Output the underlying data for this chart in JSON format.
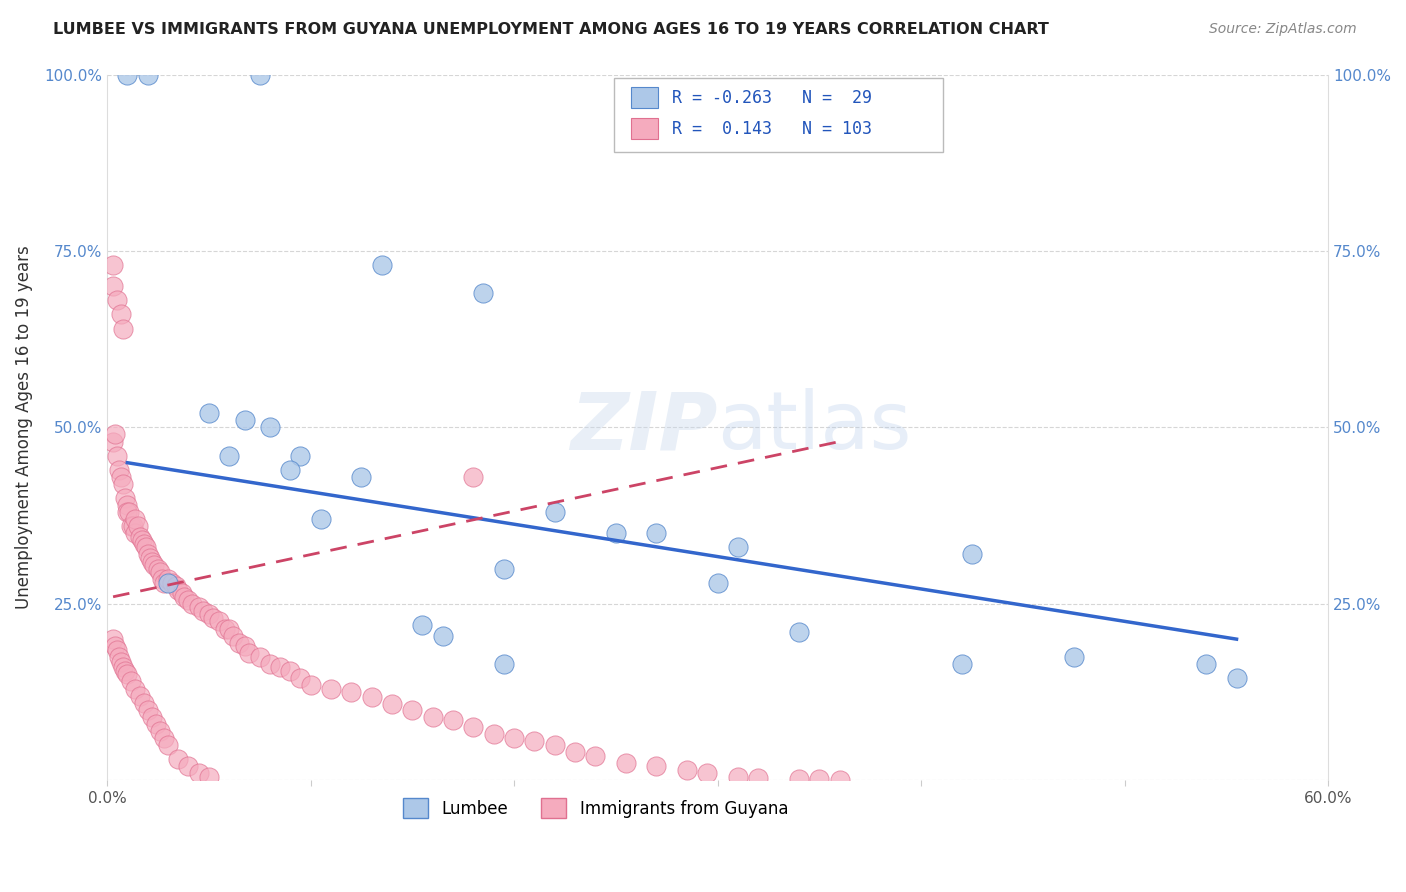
{
  "title": "LUMBEE VS IMMIGRANTS FROM GUYANA UNEMPLOYMENT AMONG AGES 16 TO 19 YEARS CORRELATION CHART",
  "source": "Source: ZipAtlas.com",
  "ylabel": "Unemployment Among Ages 16 to 19 years",
  "xlim": [
    0.0,
    0.6
  ],
  "ylim": [
    0.0,
    1.0
  ],
  "xticks": [
    0.0,
    0.1,
    0.2,
    0.3,
    0.4,
    0.5,
    0.6
  ],
  "xticklabels": [
    "0.0%",
    "",
    "",
    "",
    "",
    "",
    "60.0%"
  ],
  "yticks": [
    0.0,
    0.25,
    0.5,
    0.75,
    1.0
  ],
  "yticklabels_left": [
    "",
    "25.0%",
    "50.0%",
    "75.0%",
    "100.0%"
  ],
  "yticklabels_right": [
    "",
    "25.0%",
    "50.0%",
    "75.0%",
    "100.0%"
  ],
  "lumbee_R": -0.263,
  "lumbee_N": 29,
  "guyana_R": 0.143,
  "guyana_N": 103,
  "lumbee_color": "#adc8e8",
  "guyana_color": "#f5abbe",
  "lumbee_line_color": "#3366cc",
  "guyana_line_color": "#cc4466",
  "background_color": "#ffffff",
  "grid_color": "#cccccc",
  "lumbee_x": [
    0.01,
    0.02,
    0.075,
    0.135,
    0.185,
    0.05,
    0.068,
    0.08,
    0.06,
    0.095,
    0.09,
    0.125,
    0.105,
    0.22,
    0.195,
    0.25,
    0.27,
    0.31,
    0.3,
    0.34,
    0.425,
    0.42,
    0.475,
    0.54,
    0.555,
    0.03,
    0.155,
    0.165,
    0.195
  ],
  "lumbee_y": [
    1.0,
    1.0,
    1.0,
    0.73,
    0.69,
    0.52,
    0.51,
    0.5,
    0.46,
    0.46,
    0.44,
    0.43,
    0.37,
    0.38,
    0.3,
    0.35,
    0.35,
    0.33,
    0.28,
    0.21,
    0.32,
    0.165,
    0.175,
    0.165,
    0.145,
    0.28,
    0.22,
    0.205,
    0.165
  ],
  "guyana_x": [
    0.003,
    0.003,
    0.005,
    0.007,
    0.008,
    0.003,
    0.004,
    0.005,
    0.006,
    0.007,
    0.008,
    0.009,
    0.01,
    0.01,
    0.011,
    0.012,
    0.013,
    0.014,
    0.014,
    0.015,
    0.016,
    0.017,
    0.018,
    0.019,
    0.02,
    0.021,
    0.022,
    0.023,
    0.025,
    0.026,
    0.027,
    0.028,
    0.03,
    0.032,
    0.034,
    0.035,
    0.037,
    0.038,
    0.04,
    0.042,
    0.045,
    0.047,
    0.05,
    0.052,
    0.055,
    0.058,
    0.06,
    0.062,
    0.065,
    0.068,
    0.07,
    0.075,
    0.08,
    0.085,
    0.09,
    0.095,
    0.1,
    0.11,
    0.12,
    0.13,
    0.14,
    0.15,
    0.16,
    0.17,
    0.18,
    0.19,
    0.2,
    0.21,
    0.22,
    0.23,
    0.24,
    0.255,
    0.27,
    0.285,
    0.295,
    0.31,
    0.32,
    0.34,
    0.35,
    0.36,
    0.003,
    0.004,
    0.005,
    0.006,
    0.007,
    0.008,
    0.009,
    0.01,
    0.012,
    0.014,
    0.016,
    0.018,
    0.02,
    0.022,
    0.024,
    0.026,
    0.028,
    0.03,
    0.035,
    0.04,
    0.045,
    0.05,
    0.18
  ],
  "guyana_y": [
    0.73,
    0.7,
    0.68,
    0.66,
    0.64,
    0.48,
    0.49,
    0.46,
    0.44,
    0.43,
    0.42,
    0.4,
    0.39,
    0.38,
    0.38,
    0.36,
    0.36,
    0.35,
    0.37,
    0.36,
    0.345,
    0.34,
    0.335,
    0.33,
    0.32,
    0.315,
    0.31,
    0.305,
    0.3,
    0.295,
    0.285,
    0.28,
    0.285,
    0.28,
    0.275,
    0.27,
    0.265,
    0.26,
    0.255,
    0.25,
    0.245,
    0.24,
    0.235,
    0.23,
    0.225,
    0.215,
    0.215,
    0.205,
    0.195,
    0.19,
    0.18,
    0.175,
    0.165,
    0.16,
    0.155,
    0.145,
    0.135,
    0.13,
    0.125,
    0.118,
    0.108,
    0.1,
    0.09,
    0.085,
    0.075,
    0.065,
    0.06,
    0.055,
    0.05,
    0.04,
    0.035,
    0.025,
    0.02,
    0.015,
    0.01,
    0.005,
    0.003,
    0.002,
    0.002,
    0.001,
    0.2,
    0.19,
    0.185,
    0.175,
    0.168,
    0.16,
    0.155,
    0.15,
    0.14,
    0.13,
    0.12,
    0.11,
    0.1,
    0.09,
    0.08,
    0.07,
    0.06,
    0.05,
    0.03,
    0.02,
    0.01,
    0.005,
    0.43
  ],
  "lumbee_trend_x": [
    0.01,
    0.555
  ],
  "lumbee_trend_y": [
    0.45,
    0.2
  ],
  "guyana_trend_x": [
    0.003,
    0.36
  ],
  "guyana_trend_y": [
    0.26,
    0.48
  ]
}
